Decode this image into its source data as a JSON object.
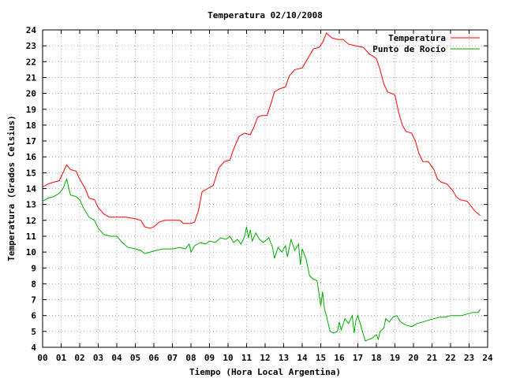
{
  "chart_data": {
    "type": "line",
    "title": "Temperatura 02/10/2008",
    "xlabel": "Tiempo (Hora Local Argentina)",
    "ylabel": "Temperatura (Grados Celsius)",
    "xlim": [
      0,
      24
    ],
    "ylim": [
      4,
      24
    ],
    "x_ticks": [
      "00",
      "01",
      "02",
      "03",
      "04",
      "05",
      "06",
      "07",
      "08",
      "09",
      "10",
      "11",
      "12",
      "13",
      "14",
      "15",
      "16",
      "17",
      "18",
      "19",
      "20",
      "21",
      "22",
      "23",
      "24"
    ],
    "y_ticks": [
      4,
      5,
      6,
      7,
      8,
      9,
      10,
      11,
      12,
      13,
      14,
      15,
      16,
      17,
      18,
      19,
      20,
      21,
      22,
      23,
      24
    ],
    "grid": true,
    "legend_position": "top-right",
    "series": [
      {
        "name": "Temperatura",
        "color": "#ff0000",
        "points": [
          [
            0.0,
            14.1
          ],
          [
            0.3,
            14.3
          ],
          [
            0.6,
            14.4
          ],
          [
            0.9,
            14.5
          ],
          [
            1.1,
            15.0
          ],
          [
            1.3,
            15.5
          ],
          [
            1.5,
            15.2
          ],
          [
            1.8,
            15.1
          ],
          [
            2.0,
            14.6
          ],
          [
            2.3,
            14.0
          ],
          [
            2.5,
            13.4
          ],
          [
            2.8,
            13.3
          ],
          [
            3.0,
            12.8
          ],
          [
            3.3,
            12.4
          ],
          [
            3.6,
            12.2
          ],
          [
            4.0,
            12.2
          ],
          [
            4.5,
            12.2
          ],
          [
            5.0,
            12.1
          ],
          [
            5.3,
            12.0
          ],
          [
            5.5,
            11.6
          ],
          [
            5.8,
            11.5
          ],
          [
            6.0,
            11.6
          ],
          [
            6.3,
            11.9
          ],
          [
            6.6,
            12.0
          ],
          [
            7.0,
            12.0
          ],
          [
            7.4,
            12.0
          ],
          [
            7.6,
            11.8
          ],
          [
            8.0,
            11.8
          ],
          [
            8.2,
            11.9
          ],
          [
            8.4,
            12.6
          ],
          [
            8.6,
            13.8
          ],
          [
            8.9,
            14.0
          ],
          [
            9.2,
            14.2
          ],
          [
            9.5,
            15.3
          ],
          [
            9.8,
            15.7
          ],
          [
            10.1,
            15.8
          ],
          [
            10.3,
            16.5
          ],
          [
            10.6,
            17.3
          ],
          [
            10.9,
            17.5
          ],
          [
            11.2,
            17.4
          ],
          [
            11.4,
            17.9
          ],
          [
            11.6,
            18.5
          ],
          [
            11.8,
            18.6
          ],
          [
            12.1,
            18.6
          ],
          [
            12.3,
            19.3
          ],
          [
            12.5,
            20.1
          ],
          [
            12.8,
            20.3
          ],
          [
            13.1,
            20.4
          ],
          [
            13.3,
            21.1
          ],
          [
            13.6,
            21.5
          ],
          [
            14.0,
            21.6
          ],
          [
            14.3,
            22.2
          ],
          [
            14.6,
            22.8
          ],
          [
            14.9,
            22.9
          ],
          [
            15.1,
            23.2
          ],
          [
            15.3,
            23.8
          ],
          [
            15.6,
            23.5
          ],
          [
            15.9,
            23.4
          ],
          [
            16.2,
            23.4
          ],
          [
            16.5,
            23.1
          ],
          [
            16.9,
            23.0
          ],
          [
            17.3,
            22.9
          ],
          [
            17.6,
            22.5
          ],
          [
            18.0,
            22.2
          ],
          [
            18.2,
            21.5
          ],
          [
            18.4,
            20.6
          ],
          [
            18.6,
            20.1
          ],
          [
            19.0,
            19.9
          ],
          [
            19.2,
            18.8
          ],
          [
            19.4,
            18.0
          ],
          [
            19.6,
            17.6
          ],
          [
            19.9,
            17.5
          ],
          [
            20.1,
            17.0
          ],
          [
            20.3,
            16.2
          ],
          [
            20.5,
            15.7
          ],
          [
            20.8,
            15.7
          ],
          [
            21.1,
            15.2
          ],
          [
            21.3,
            14.6
          ],
          [
            21.5,
            14.4
          ],
          [
            21.8,
            14.3
          ],
          [
            22.1,
            13.9
          ],
          [
            22.3,
            13.5
          ],
          [
            22.5,
            13.3
          ],
          [
            22.9,
            13.2
          ],
          [
            23.1,
            12.9
          ],
          [
            23.3,
            12.6
          ],
          [
            23.6,
            12.3
          ]
        ]
      },
      {
        "name": "Punto de Rocío",
        "color": "#00aa00",
        "points": [
          [
            0.0,
            13.2
          ],
          [
            0.3,
            13.4
          ],
          [
            0.6,
            13.5
          ],
          [
            0.9,
            13.7
          ],
          [
            1.1,
            14.0
          ],
          [
            1.3,
            14.6
          ],
          [
            1.5,
            13.6
          ],
          [
            1.8,
            13.5
          ],
          [
            2.0,
            13.3
          ],
          [
            2.2,
            12.8
          ],
          [
            2.5,
            12.2
          ],
          [
            2.8,
            12.0
          ],
          [
            3.0,
            11.5
          ],
          [
            3.3,
            11.1
          ],
          [
            3.7,
            11.0
          ],
          [
            4.0,
            11.0
          ],
          [
            4.3,
            10.6
          ],
          [
            4.6,
            10.3
          ],
          [
            5.0,
            10.2
          ],
          [
            5.3,
            10.1
          ],
          [
            5.5,
            9.9
          ],
          [
            5.8,
            10.0
          ],
          [
            6.1,
            10.1
          ],
          [
            6.5,
            10.2
          ],
          [
            7.0,
            10.2
          ],
          [
            7.4,
            10.3
          ],
          [
            7.7,
            10.2
          ],
          [
            7.9,
            10.5
          ],
          [
            8.0,
            10.0
          ],
          [
            8.2,
            10.4
          ],
          [
            8.5,
            10.6
          ],
          [
            8.8,
            10.5
          ],
          [
            9.0,
            10.7
          ],
          [
            9.3,
            10.6
          ],
          [
            9.6,
            10.9
          ],
          [
            9.9,
            10.8
          ],
          [
            10.1,
            11.0
          ],
          [
            10.3,
            10.6
          ],
          [
            10.5,
            10.8
          ],
          [
            10.7,
            10.5
          ],
          [
            10.9,
            11.0
          ],
          [
            11.0,
            11.6
          ],
          [
            11.1,
            10.9
          ],
          [
            11.2,
            11.4
          ],
          [
            11.3,
            10.7
          ],
          [
            11.5,
            11.2
          ],
          [
            11.7,
            10.8
          ],
          [
            11.9,
            10.6
          ],
          [
            12.2,
            10.9
          ],
          [
            12.4,
            10.3
          ],
          [
            12.5,
            9.6
          ],
          [
            12.7,
            10.3
          ],
          [
            12.9,
            10.0
          ],
          [
            13.1,
            10.4
          ],
          [
            13.2,
            9.7
          ],
          [
            13.4,
            10.8
          ],
          [
            13.6,
            10.1
          ],
          [
            13.8,
            10.5
          ],
          [
            13.9,
            9.2
          ],
          [
            14.0,
            10.2
          ],
          [
            14.2,
            9.6
          ],
          [
            14.4,
            8.5
          ],
          [
            14.6,
            8.3
          ],
          [
            14.8,
            8.2
          ],
          [
            14.9,
            7.4
          ],
          [
            15.0,
            6.6
          ],
          [
            15.1,
            7.5
          ],
          [
            15.2,
            6.4
          ],
          [
            15.3,
            6.0
          ],
          [
            15.5,
            5.0
          ],
          [
            15.7,
            4.9
          ],
          [
            15.9,
            5.0
          ],
          [
            16.0,
            5.6
          ],
          [
            16.1,
            5.1
          ],
          [
            16.3,
            5.8
          ],
          [
            16.5,
            5.5
          ],
          [
            16.7,
            6.0
          ],
          [
            16.8,
            4.9
          ],
          [
            16.9,
            5.7
          ],
          [
            17.0,
            6.0
          ],
          [
            17.2,
            5.2
          ],
          [
            17.4,
            4.4
          ],
          [
            17.6,
            4.5
          ],
          [
            17.8,
            4.6
          ],
          [
            18.0,
            4.8
          ],
          [
            18.1,
            4.5
          ],
          [
            18.2,
            5.0
          ],
          [
            18.4,
            5.2
          ],
          [
            18.5,
            5.8
          ],
          [
            18.7,
            5.6
          ],
          [
            18.9,
            5.9
          ],
          [
            19.1,
            6.0
          ],
          [
            19.3,
            5.6
          ],
          [
            19.6,
            5.4
          ],
          [
            19.9,
            5.3
          ],
          [
            20.2,
            5.5
          ],
          [
            20.5,
            5.6
          ],
          [
            20.8,
            5.7
          ],
          [
            21.1,
            5.8
          ],
          [
            21.4,
            5.9
          ],
          [
            21.7,
            5.9
          ],
          [
            22.0,
            6.0
          ],
          [
            22.3,
            6.0
          ],
          [
            22.6,
            6.0
          ],
          [
            22.9,
            6.1
          ],
          [
            23.2,
            6.2
          ],
          [
            23.5,
            6.2
          ],
          [
            23.6,
            6.4
          ]
        ]
      }
    ]
  }
}
